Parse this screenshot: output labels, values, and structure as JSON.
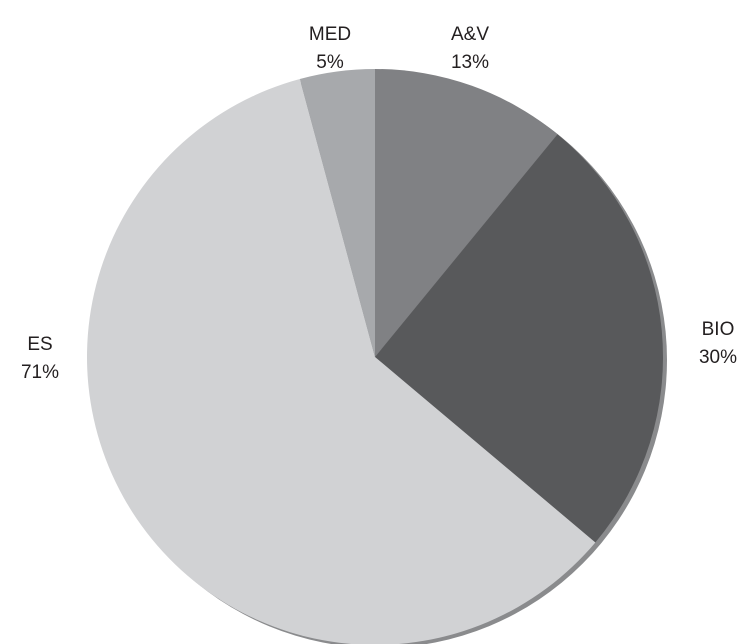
{
  "chart_data": {
    "type": "pie",
    "categories": [
      "A&V",
      "BIO",
      "ES",
      "MED"
    ],
    "values": [
      13,
      30,
      71,
      5
    ],
    "value_labels": [
      "13%",
      "30%",
      "71%",
      "5%"
    ],
    "colors": [
      "#808184",
      "#58595b",
      "#d1d2d4",
      "#a7a9ac"
    ]
  }
}
